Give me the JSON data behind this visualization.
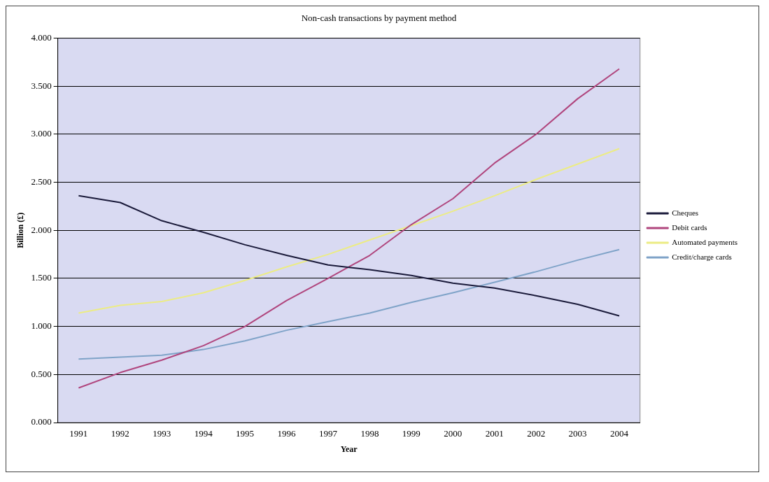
{
  "chart_data": {
    "type": "line",
    "title": "Non-cash transactions by payment method",
    "xlabel": "Year",
    "ylabel": "Billion (£)",
    "categories": [
      "1991",
      "1992",
      "1993",
      "1994",
      "1995",
      "1996",
      "1997",
      "1998",
      "1999",
      "2000",
      "2001",
      "2002",
      "2003",
      "2004"
    ],
    "series": [
      {
        "name": "Cheques",
        "color": "#1a1a3a",
        "values": [
          2.36,
          2.29,
          2.1,
          1.98,
          1.85,
          1.74,
          1.64,
          1.59,
          1.53,
          1.45,
          1.4,
          1.32,
          1.23,
          1.11
        ]
      },
      {
        "name": "Debit cards",
        "color": "#b0457d",
        "values": [
          0.36,
          0.52,
          0.65,
          0.8,
          1.0,
          1.27,
          1.5,
          1.74,
          2.06,
          2.33,
          2.7,
          3.0,
          3.37,
          3.68
        ]
      },
      {
        "name": "Automated payments",
        "color": "#ecec84",
        "values": [
          1.14,
          1.22,
          1.26,
          1.35,
          1.48,
          1.62,
          1.75,
          1.9,
          2.05,
          2.2,
          2.36,
          2.53,
          2.69,
          2.85
        ]
      },
      {
        "name": "Credit/charge cards",
        "color": "#7fa3c8",
        "values": [
          0.66,
          0.68,
          0.7,
          0.76,
          0.85,
          0.96,
          1.05,
          1.14,
          1.25,
          1.35,
          1.46,
          1.57,
          1.69,
          1.8
        ]
      }
    ],
    "ylim": [
      0,
      4
    ],
    "yticks": [
      {
        "value": 0,
        "label": "0.000"
      },
      {
        "value": 0.5,
        "label": "0.500"
      },
      {
        "value": 1,
        "label": "1.000"
      },
      {
        "value": 1.5,
        "label": "1.500"
      },
      {
        "value": 2,
        "label": "2.000"
      },
      {
        "value": 2.5,
        "label": "2.500"
      },
      {
        "value": 3,
        "label": "3.000"
      },
      {
        "value": 3.5,
        "label": "3.500"
      },
      {
        "value": 4,
        "label": "4.000"
      }
    ],
    "grid": "y",
    "legend": "right",
    "marker": "none",
    "line_style": "solid"
  }
}
